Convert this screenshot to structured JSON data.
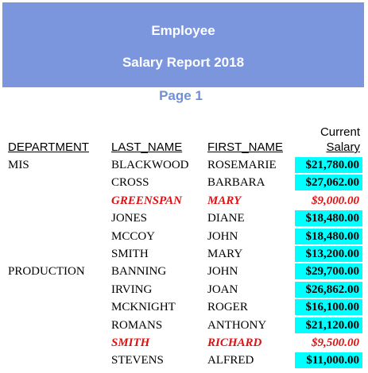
{
  "header": {
    "title": "Employee",
    "subtitle": "Salary Report 2018",
    "page": "Page 1"
  },
  "columns": {
    "department": "DEPARTMENT",
    "last_name": "LAST_NAME",
    "first_name": "FIRST_NAME",
    "salary_top": "Current",
    "salary": "Salary"
  },
  "departments": [
    {
      "name": "MIS",
      "rows": [
        {
          "last": "BLACKWOOD",
          "first": "ROSEMARIE",
          "salary": "$21,780.00",
          "flagged": false
        },
        {
          "last": "CROSS",
          "first": "BARBARA",
          "salary": "$27,062.00",
          "flagged": false
        },
        {
          "last": "GREENSPAN",
          "first": "MARY",
          "salary": "$9,000.00",
          "flagged": true
        },
        {
          "last": "JONES",
          "first": "DIANE",
          "salary": "$18,480.00",
          "flagged": false
        },
        {
          "last": "MCCOY",
          "first": "JOHN",
          "salary": "$18,480.00",
          "flagged": false
        },
        {
          "last": "SMITH",
          "first": "MARY",
          "salary": "$13,200.00",
          "flagged": false
        }
      ]
    },
    {
      "name": "PRODUCTION",
      "rows": [
        {
          "last": "BANNING",
          "first": "JOHN",
          "salary": "$29,700.00",
          "flagged": false
        },
        {
          "last": "IRVING",
          "first": "JOAN",
          "salary": "$26,862.00",
          "flagged": false
        },
        {
          "last": "MCKNIGHT",
          "first": "ROGER",
          "salary": "$16,100.00",
          "flagged": false
        },
        {
          "last": "ROMANS",
          "first": "ANTHONY",
          "salary": "$21,120.00",
          "flagged": false
        },
        {
          "last": "SMITH",
          "first": "RICHARD",
          "salary": "$9,500.00",
          "flagged": true
        },
        {
          "last": "STEVENS",
          "first": "ALFRED",
          "salary": "$11,000.00",
          "flagged": false
        }
      ]
    }
  ]
}
